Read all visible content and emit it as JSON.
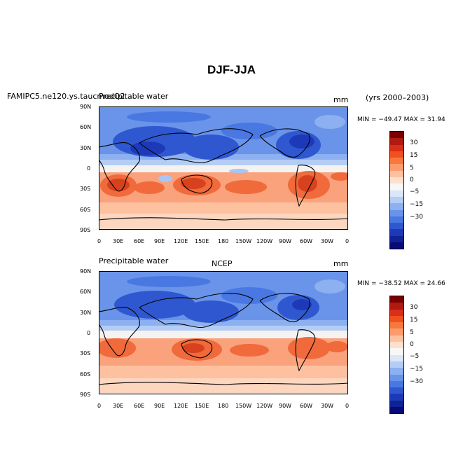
{
  "figure": {
    "title": "DJF-JJA",
    "years": "(yrs 2000–2003)"
  },
  "panels": [
    {
      "case": "FAMIPC5.ne120.ys.taucmodO2",
      "field": "Precipitable water",
      "units": "mm",
      "stats": "MIN = −49.47 MAX =  31.94"
    },
    {
      "case": "NCEP",
      "field": "Precipitable water",
      "units": "mm",
      "stats": "MIN = −38.52 MAX =  24.66"
    }
  ],
  "lat_ticks": [
    "90N",
    "60N",
    "30N",
    "0",
    "30S",
    "60S",
    "90S"
  ],
  "lon_ticks": [
    "0",
    "30E",
    "60E",
    "90E",
    "120E",
    "150E",
    "180",
    "150W",
    "120W",
    "90W",
    "60W",
    "30W",
    "0"
  ],
  "colorbar": {
    "labels": [
      "30",
      "15",
      "5",
      "0",
      "−5",
      "−15",
      "−30"
    ],
    "colors": [
      "#7a0000",
      "#b01a10",
      "#d82e1a",
      "#f0501e",
      "#f8783c",
      "#fc9c6e",
      "#fdc1a0",
      "#fee0cc",
      "#f7f7f7",
      "#dbe6f8",
      "#b4cdf5",
      "#8cb0f0",
      "#6a94ea",
      "#4a78e2",
      "#2f58d0",
      "#1c3ab8",
      "#0f2396",
      "#080a78"
    ]
  },
  "map_colors": {
    "deep_red": "#d8411e",
    "red": "#f06a3c",
    "salmon": "#f9a27c",
    "pale": "#fdd6c0",
    "white": "#f5f3f2",
    "light_blue": "#a9c5f3",
    "blue": "#6a94ea",
    "dark_blue": "#2f58d0",
    "navy": "#1c3ab8"
  }
}
